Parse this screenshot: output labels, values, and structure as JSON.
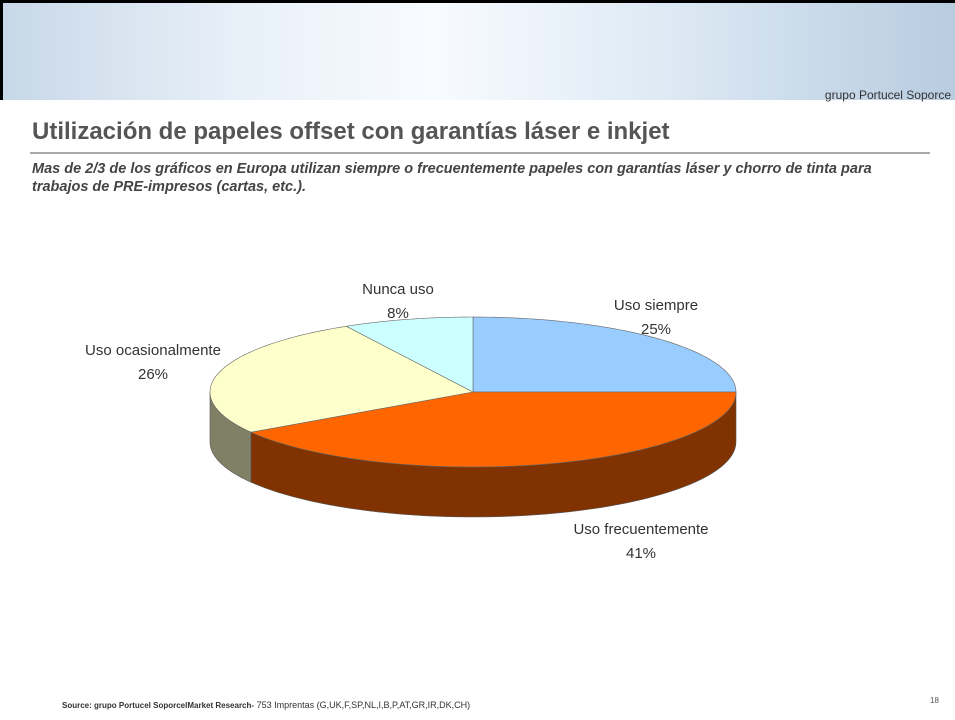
{
  "slide": {
    "brand": "grupo Portucel Soporce",
    "title": "Utilización de papeles offset con garantías láser e inkjet",
    "subtitle": "Mas de 2/3 de los gráficos en Europa utilizan siempre o frecuentemente papeles con garantías láser y chorro de tinta para trabajos de PRE-impresos (cartas, etc.).",
    "source_bold": "Source: grupo Portucel SoporcelMarket Research-",
    "source_rest": "753 Imprentas (G,UK,F,SP,NL,I,B,P,AT,GR,IR,DK,CH)",
    "page_number": "18"
  },
  "chart_data": {
    "type": "pie",
    "categories": [
      "Uso siempre",
      "Uso frecuentemente",
      "Uso ocasionalmente",
      "Nunca uso"
    ],
    "values": [
      25,
      41,
      26,
      8
    ],
    "value_labels": [
      "25%",
      "41%",
      "26%",
      "8%"
    ],
    "colors": [
      "#99ccff",
      "#ff6600",
      "#ffffcc",
      "#ccffff"
    ]
  }
}
